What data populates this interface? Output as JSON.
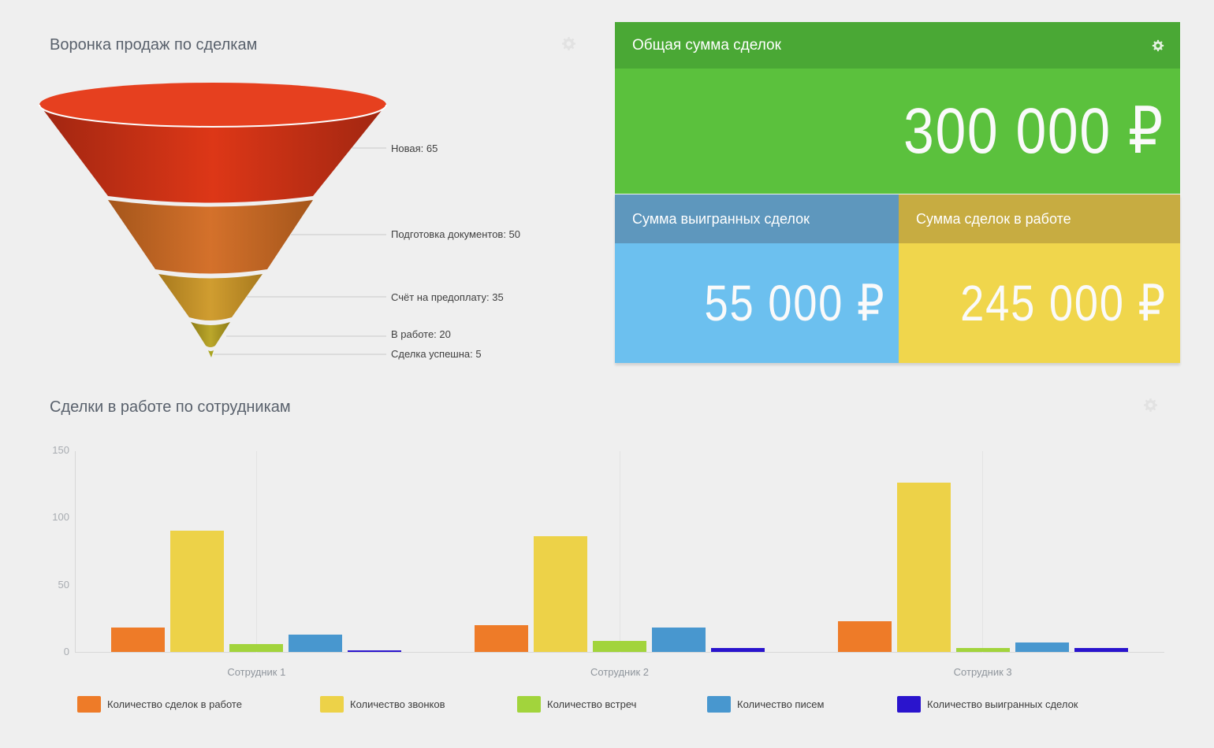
{
  "icons": {
    "widget_settings": "gear",
    "tile_settings": "gear"
  },
  "summary_tiles": {
    "total": {
      "title": "Общая сумма сделок",
      "value": "300 000 ₽",
      "header_color": "#4aa835",
      "body_color": "#5bc13d"
    },
    "won": {
      "title": "Сумма выигранных сделок",
      "value": "55 000 ₽",
      "header_color": "#5e97bd",
      "body_color": "#6cc0ef"
    },
    "in_progress": {
      "title": "Сумма сделок в работе",
      "value": "245 000 ₽",
      "header_color": "#c7ac41",
      "body_color": "#f0d64c"
    }
  },
  "chart_data": [
    {
      "type": "funnel",
      "title": "Воронка продаж по сделкам",
      "stages": [
        {
          "name": "Новая",
          "value": 65,
          "label": "Новая: 65",
          "color": "#dd3717"
        },
        {
          "name": "Подготовка документов",
          "value": 50,
          "label": "Подготовка документов: 50",
          "color": "#d4712b"
        },
        {
          "name": "Счёт на предоплату",
          "value": 35,
          "label": "Счёт на предоплату: 35",
          "color": "#d09d30"
        },
        {
          "name": "В работе",
          "value": 20,
          "label": "В работе: 20",
          "color": "#bba72b"
        },
        {
          "name": "Сделка успешна",
          "value": 5,
          "label": "Сделка успешна: 5",
          "color": "#a9a41f"
        }
      ]
    },
    {
      "type": "bar",
      "title": "Сделки в работе по сотрудникам",
      "categories": [
        "Сотрудник 1",
        "Сотрудник 2",
        "Сотрудник 3"
      ],
      "series": [
        {
          "name": "Количество сделок в работе",
          "color": "#ee7b28",
          "values": [
            18,
            20,
            23
          ]
        },
        {
          "name": "Количество звонков",
          "color": "#edd248",
          "values": [
            90,
            86,
            126
          ]
        },
        {
          "name": "Количество встреч",
          "color": "#a2d43c",
          "values": [
            6,
            8,
            3
          ]
        },
        {
          "name": "Количество писем",
          "color": "#4897cf",
          "values": [
            13,
            18,
            7
          ]
        },
        {
          "name": "Количество выигранных сделок",
          "color": "#2a14cd",
          "values": [
            1,
            3,
            3
          ]
        }
      ],
      "y_ticks": [
        150,
        100,
        50,
        0
      ],
      "ylim": [
        0,
        150
      ],
      "xlabel": "",
      "ylabel": "",
      "grid": "vertical-category-lines",
      "legend_position": "bottom"
    }
  ]
}
